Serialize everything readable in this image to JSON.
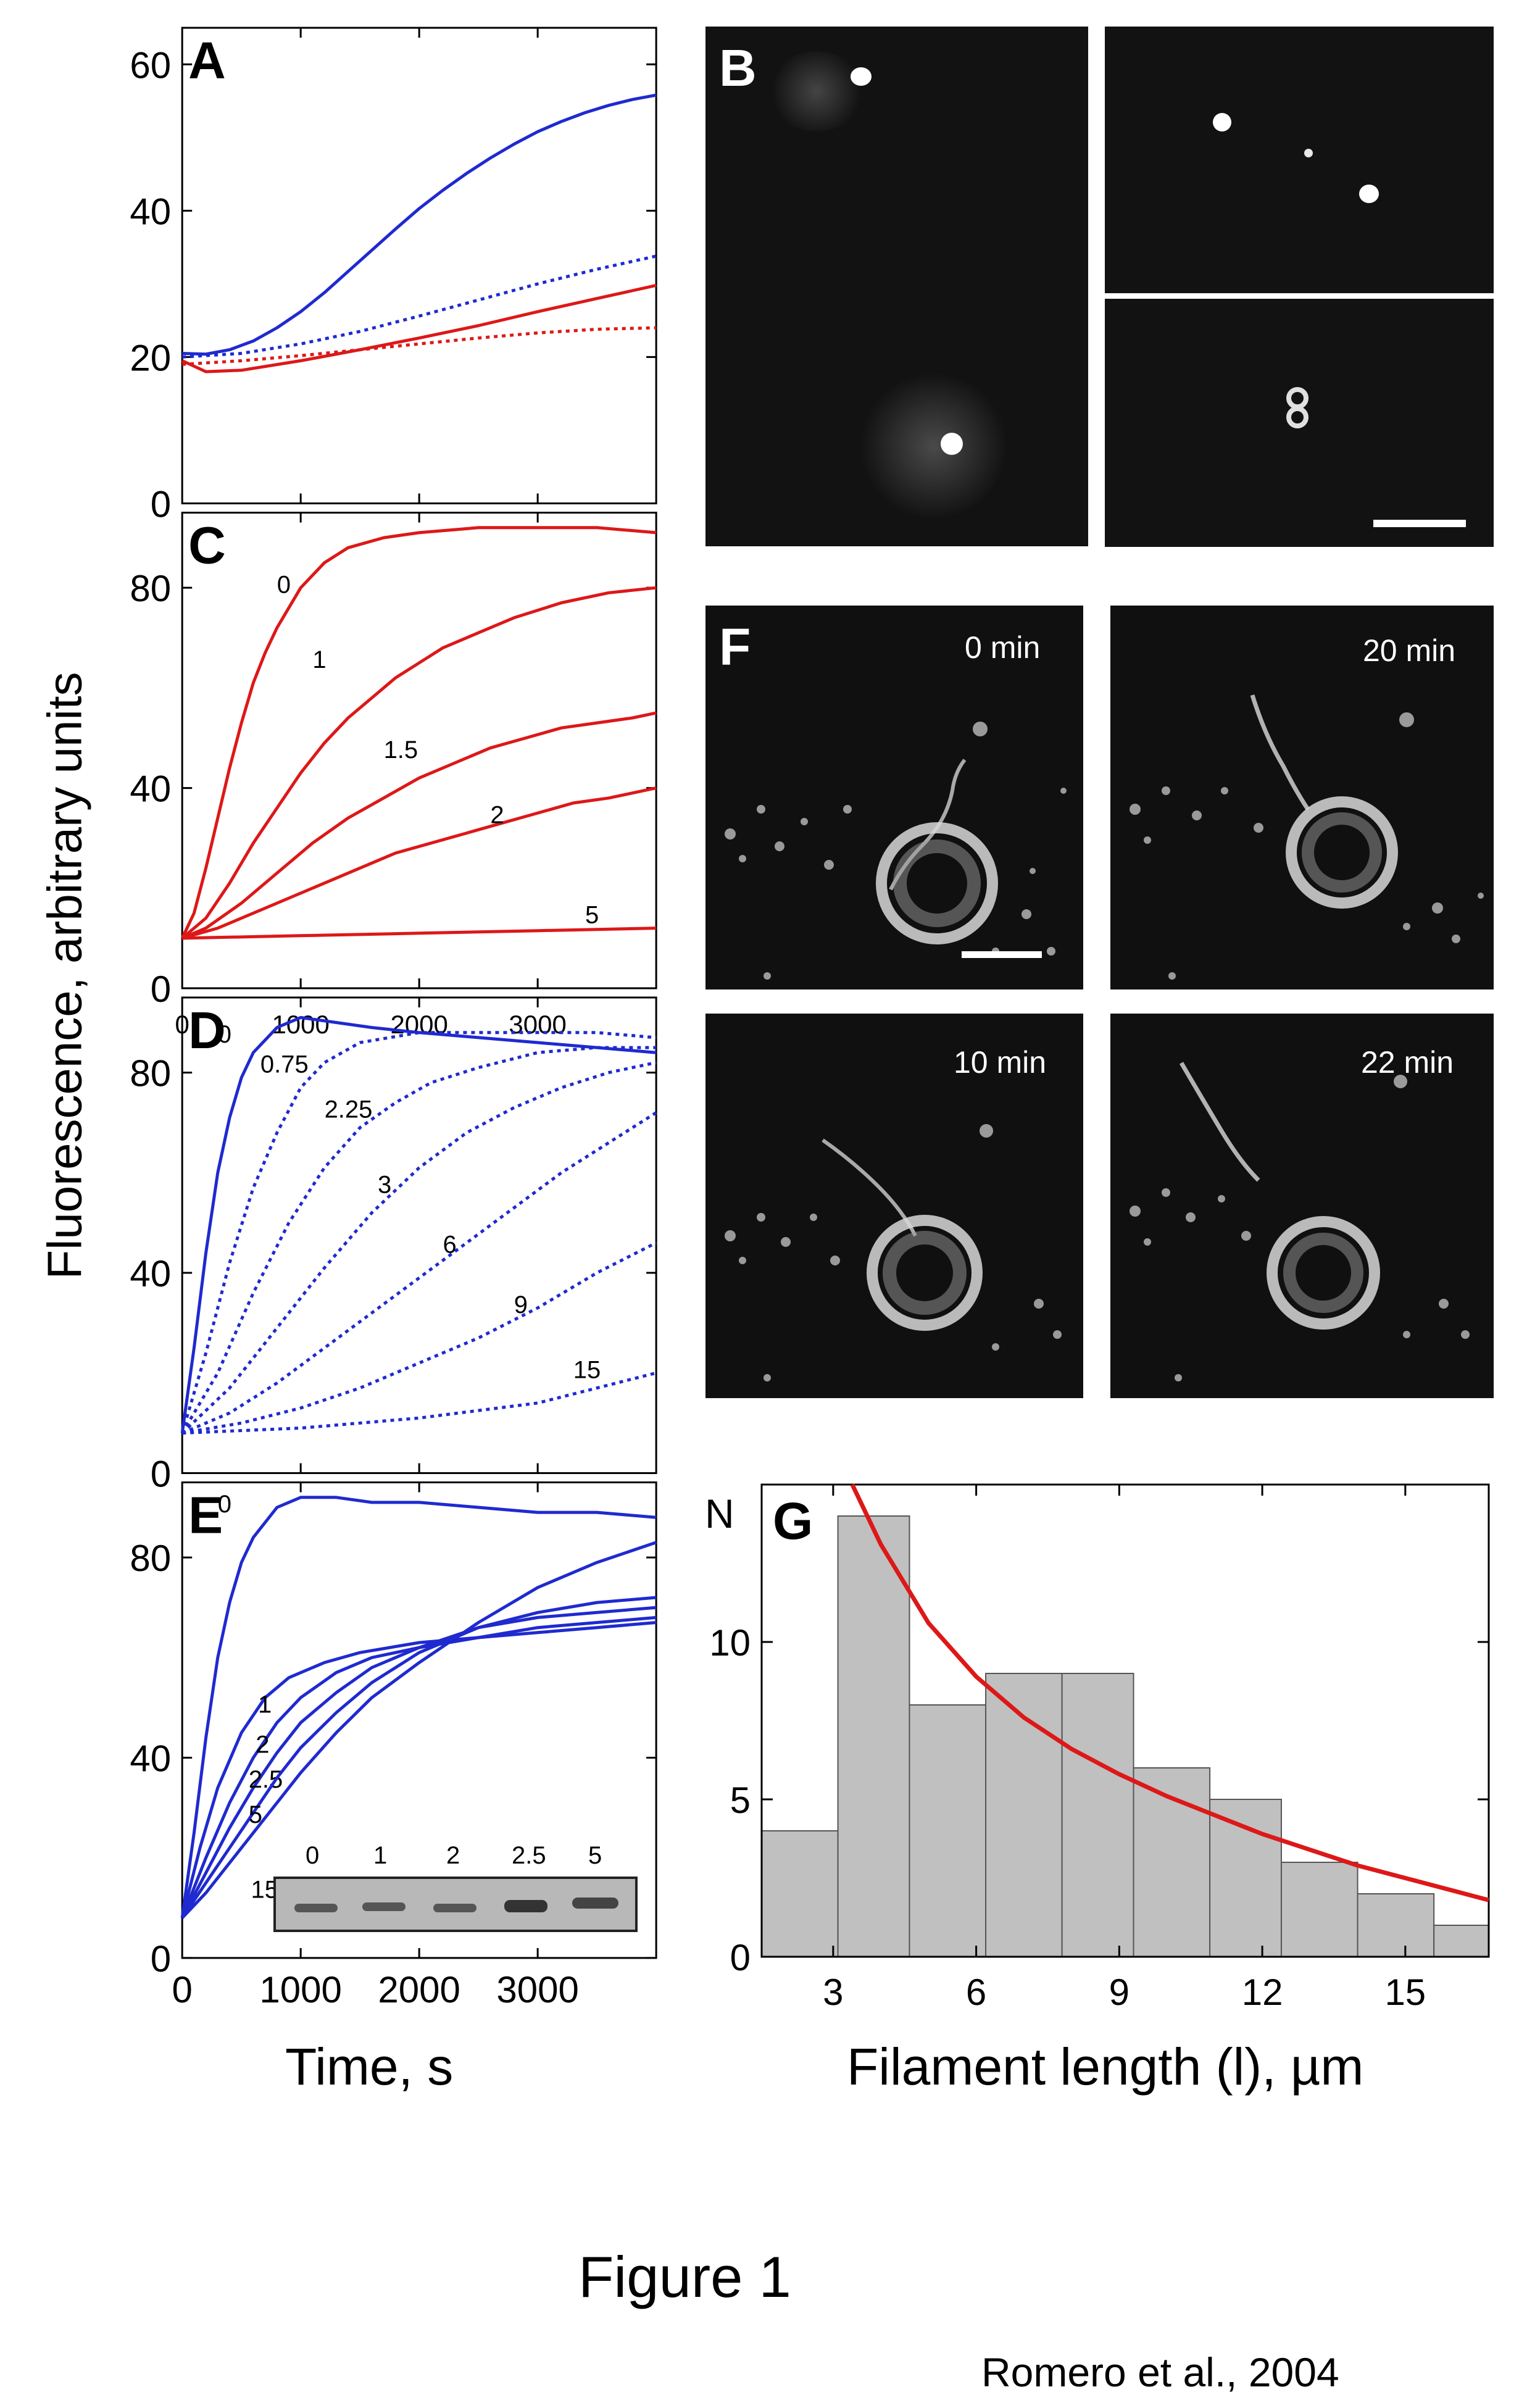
{
  "figure": {
    "caption": "Figure 1",
    "credit": "Romero et al., 2004",
    "y_axis_label": "Fluorescence, arbitrary units",
    "x_axis_label_left": "Time, s",
    "x_axis_label_right": "Filament length (l), µm"
  },
  "colors": {
    "blue": "#1f2ad0",
    "red": "#dd1818",
    "hist_fill": "#c0c0c0"
  },
  "panel_letters": {
    "A": "A",
    "B": "B",
    "C": "C",
    "D": "D",
    "E": "E",
    "F": "F",
    "G": "G"
  },
  "micrographs": {
    "F_times": [
      "0 min",
      "20 min",
      "10 min",
      "22 min"
    ]
  },
  "gel_lanes": [
    "0",
    "1",
    "2",
    "2.5",
    "5"
  ],
  "chart_data": [
    {
      "panel": "A",
      "type": "line",
      "xlim": [
        0,
        4000
      ],
      "ylim": [
        0,
        65
      ],
      "yticks": [
        0,
        20,
        40,
        60
      ],
      "series": [
        {
          "color": "blue",
          "style": "solid",
          "x": [
            0,
            200,
            400,
            600,
            800,
            1000,
            1200,
            1400,
            1600,
            1800,
            2000,
            2200,
            2400,
            2600,
            2800,
            3000,
            3200,
            3400,
            3600,
            3800,
            4000
          ],
          "y": [
            20.5,
            20.4,
            21.0,
            22.2,
            24.0,
            26.2,
            28.8,
            31.7,
            34.6,
            37.5,
            40.3,
            42.8,
            45.1,
            47.2,
            49.1,
            50.8,
            52.2,
            53.4,
            54.4,
            55.2,
            55.8
          ]
        },
        {
          "color": "blue",
          "style": "dotted",
          "x": [
            0,
            500,
            1000,
            1500,
            2000,
            2500,
            3000,
            3500,
            4000
          ],
          "y": [
            20,
            20.5,
            21.8,
            23.5,
            25.6,
            27.8,
            30.0,
            32.0,
            33.8
          ]
        },
        {
          "color": "red",
          "style": "solid",
          "x": [
            0,
            200,
            500,
            1000,
            1500,
            2000,
            2500,
            3000,
            3500,
            4000
          ],
          "y": [
            19.5,
            18,
            18.2,
            19.5,
            21,
            22.6,
            24.3,
            26.2,
            28,
            29.8
          ]
        },
        {
          "color": "red",
          "style": "dotted",
          "x": [
            0,
            500,
            1000,
            1500,
            2000,
            2500,
            3000,
            3500,
            4000
          ],
          "y": [
            19,
            19.5,
            20.2,
            21,
            21.8,
            22.6,
            23.3,
            23.8,
            24
          ]
        }
      ]
    },
    {
      "panel": "C",
      "type": "line",
      "xlim": [
        0,
        4000
      ],
      "ylim": [
        0,
        95
      ],
      "yticks": [
        0,
        40,
        80
      ],
      "series": [
        {
          "name": "0",
          "color": "red",
          "style": "solid",
          "x": [
            0,
            100,
            200,
            300,
            400,
            500,
            600,
            700,
            800,
            1000,
            1200,
            1400,
            1700,
            2000,
            2500,
            3000,
            3500,
            4000
          ],
          "y": [
            10,
            15,
            24,
            34,
            44,
            53,
            61,
            67,
            72,
            80,
            85,
            88,
            90,
            91,
            92,
            92,
            92,
            91
          ]
        },
        {
          "name": "1",
          "color": "red",
          "style": "solid",
          "x": [
            0,
            200,
            400,
            600,
            800,
            1000,
            1200,
            1400,
            1600,
            1800,
            2000,
            2200,
            2500,
            2800,
            3200,
            3600,
            4000
          ],
          "y": [
            10,
            14,
            21,
            29,
            36,
            43,
            49,
            54,
            58,
            62,
            65,
            68,
            71,
            74,
            77,
            79,
            80
          ]
        },
        {
          "name": "1.5",
          "color": "red",
          "style": "solid",
          "x": [
            0,
            200,
            500,
            800,
            1100,
            1400,
            1700,
            2000,
            2300,
            2600,
            2900,
            3200,
            3500,
            3800,
            4000
          ],
          "y": [
            10,
            12,
            17,
            23,
            29,
            34,
            38,
            42,
            45,
            48,
            50,
            52,
            53,
            54,
            55
          ]
        },
        {
          "name": "2",
          "color": "red",
          "style": "solid",
          "x": [
            0,
            300,
            600,
            900,
            1200,
            1500,
            1800,
            2100,
            2400,
            2700,
            3000,
            3300,
            3600,
            3800,
            4000
          ],
          "y": [
            10,
            12,
            15,
            18,
            21,
            24,
            27,
            29,
            31,
            33,
            35,
            37,
            38,
            39,
            40
          ]
        },
        {
          "name": "5",
          "color": "red",
          "style": "solid",
          "x": [
            0,
            1000,
            2000,
            3000,
            4000
          ],
          "y": [
            10,
            10.5,
            11,
            11.5,
            12
          ]
        }
      ]
    },
    {
      "panel": "D",
      "type": "line",
      "xlim": [
        0,
        4000
      ],
      "ylim": [
        0,
        95
      ],
      "xticks": [
        0,
        1000,
        2000,
        3000
      ],
      "yticks": [
        0,
        40,
        80
      ],
      "series": [
        {
          "name": "0",
          "color": "blue",
          "style": "solid",
          "x": [
            0,
            100,
            200,
            300,
            400,
            500,
            600,
            800,
            1000,
            1300,
            1600,
            2000,
            2500,
            3000,
            3500,
            4000
          ],
          "y": [
            8,
            25,
            44,
            60,
            71,
            79,
            84,
            89,
            91,
            90,
            89,
            88,
            87,
            86,
            85,
            84
          ]
        },
        {
          "name": "0.75",
          "color": "blue",
          "style": "dotted",
          "x": [
            0,
            200,
            400,
            600,
            800,
            1000,
            1200,
            1500,
            2000,
            2500,
            3000,
            3500,
            4000
          ],
          "y": [
            8,
            24,
            42,
            57,
            68,
            77,
            82,
            86,
            88,
            88,
            88,
            88,
            87
          ]
        },
        {
          "name": "2.25",
          "color": "blue",
          "style": "dotted",
          "x": [
            0,
            300,
            600,
            900,
            1200,
            1500,
            1800,
            2100,
            2500,
            3000,
            3500,
            4000
          ],
          "y": [
            8,
            20,
            36,
            50,
            61,
            69,
            74,
            78,
            81,
            84,
            85,
            85
          ]
        },
        {
          "name": "3",
          "color": "blue",
          "style": "dotted",
          "x": [
            0,
            400,
            800,
            1200,
            1600,
            2000,
            2400,
            2800,
            3200,
            3600,
            4000
          ],
          "y": [
            8,
            17,
            29,
            41,
            52,
            61,
            68,
            73,
            77,
            80,
            82
          ]
        },
        {
          "name": "6",
          "color": "blue",
          "style": "dotted",
          "x": [
            0,
            400,
            800,
            1200,
            1600,
            2000,
            2400,
            2800,
            3200,
            3600,
            4000
          ],
          "y": [
            8,
            12,
            18,
            25,
            32,
            39,
            46,
            53,
            60,
            66,
            72
          ]
        },
        {
          "name": "9",
          "color": "blue",
          "style": "dotted",
          "x": [
            0,
            500,
            1000,
            1500,
            2000,
            2500,
            3000,
            3500,
            4000
          ],
          "y": [
            8,
            10,
            13,
            17,
            22,
            27,
            33,
            40,
            46
          ]
        },
        {
          "name": "15",
          "color": "blue",
          "style": "dotted",
          "x": [
            0,
            1000,
            2000,
            3000,
            3500,
            4000
          ],
          "y": [
            8,
            9,
            11,
            14,
            17,
            20
          ]
        }
      ]
    },
    {
      "panel": "E",
      "type": "line",
      "xlim": [
        0,
        4000
      ],
      "ylim": [
        0,
        95
      ],
      "xticks": [
        0,
        1000,
        2000,
        3000
      ],
      "yticks": [
        0,
        40,
        80
      ],
      "series": [
        {
          "name": "0",
          "color": "blue",
          "style": "solid",
          "x": [
            0,
            100,
            200,
            300,
            400,
            500,
            600,
            800,
            1000,
            1300,
            1600,
            2000,
            2500,
            3000,
            3500,
            4000
          ],
          "y": [
            8,
            25,
            44,
            60,
            71,
            79,
            84,
            90,
            92,
            92,
            91,
            91,
            90,
            89,
            89,
            88
          ]
        },
        {
          "name": "1",
          "color": "blue",
          "style": "solid",
          "x": [
            0,
            150,
            300,
            500,
            700,
            900,
            1200,
            1500,
            2000,
            2500,
            3000,
            3500,
            4000
          ],
          "y": [
            8,
            22,
            34,
            45,
            52,
            56,
            59,
            61,
            63,
            64,
            65,
            66,
            67
          ]
        },
        {
          "name": "2",
          "color": "blue",
          "style": "solid",
          "x": [
            0,
            200,
            400,
            600,
            800,
            1000,
            1300,
            1600,
            2000,
            2500,
            3000,
            3500,
            4000
          ],
          "y": [
            8,
            20,
            31,
            40,
            47,
            52,
            57,
            60,
            62,
            64,
            66,
            67,
            68
          ]
        },
        {
          "name": "2.5",
          "color": "blue",
          "style": "solid",
          "x": [
            0,
            200,
            400,
            600,
            800,
            1000,
            1300,
            1600,
            2000,
            2500,
            3000,
            3500,
            4000
          ],
          "y": [
            8,
            17,
            26,
            34,
            41,
            47,
            53,
            58,
            62,
            66,
            68,
            69,
            70
          ]
        },
        {
          "name": "5",
          "color": "blue",
          "style": "solid",
          "x": [
            0,
            200,
            400,
            600,
            800,
            1000,
            1300,
            1600,
            2000,
            2500,
            3000,
            3500,
            4000
          ],
          "y": [
            8,
            15,
            22,
            29,
            36,
            42,
            49,
            55,
            61,
            66,
            69,
            71,
            72
          ]
        },
        {
          "name": "15",
          "color": "blue",
          "style": "solid",
          "x": [
            0,
            200,
            400,
            600,
            800,
            1000,
            1300,
            1600,
            2000,
            2500,
            3000,
            3500,
            4000
          ],
          "y": [
            8,
            13,
            19,
            25,
            31,
            37,
            45,
            52,
            59,
            67,
            74,
            79,
            83
          ]
        }
      ]
    },
    {
      "panel": "G",
      "type": "bar",
      "xlabel": "Filament length (l), µm",
      "ylabel": "N",
      "xlim": [
        1.5,
        16.75
      ],
      "ylim": [
        0,
        15
      ],
      "xticks": [
        3,
        6,
        9,
        12,
        15
      ],
      "yticks": [
        0,
        5,
        10
      ],
      "bin_edges": [
        1.5,
        3.1,
        4.6,
        6.2,
        7.8,
        9.3,
        10.9,
        12.4,
        14.0,
        15.6,
        16.75
      ],
      "values": [
        4,
        14,
        8,
        9,
        9,
        6,
        5,
        3,
        2,
        1
      ],
      "fit": {
        "color": "red",
        "x": [
          3.4,
          4.0,
          5.0,
          6.0,
          7.0,
          8.0,
          9.0,
          10.0,
          11.0,
          12.0,
          13.0,
          14.0,
          15.0,
          16.0,
          16.75
        ],
        "y": [
          15.0,
          13.1,
          10.6,
          8.9,
          7.6,
          6.6,
          5.8,
          5.1,
          4.5,
          3.9,
          3.4,
          2.9,
          2.5,
          2.1,
          1.8
        ]
      }
    }
  ]
}
